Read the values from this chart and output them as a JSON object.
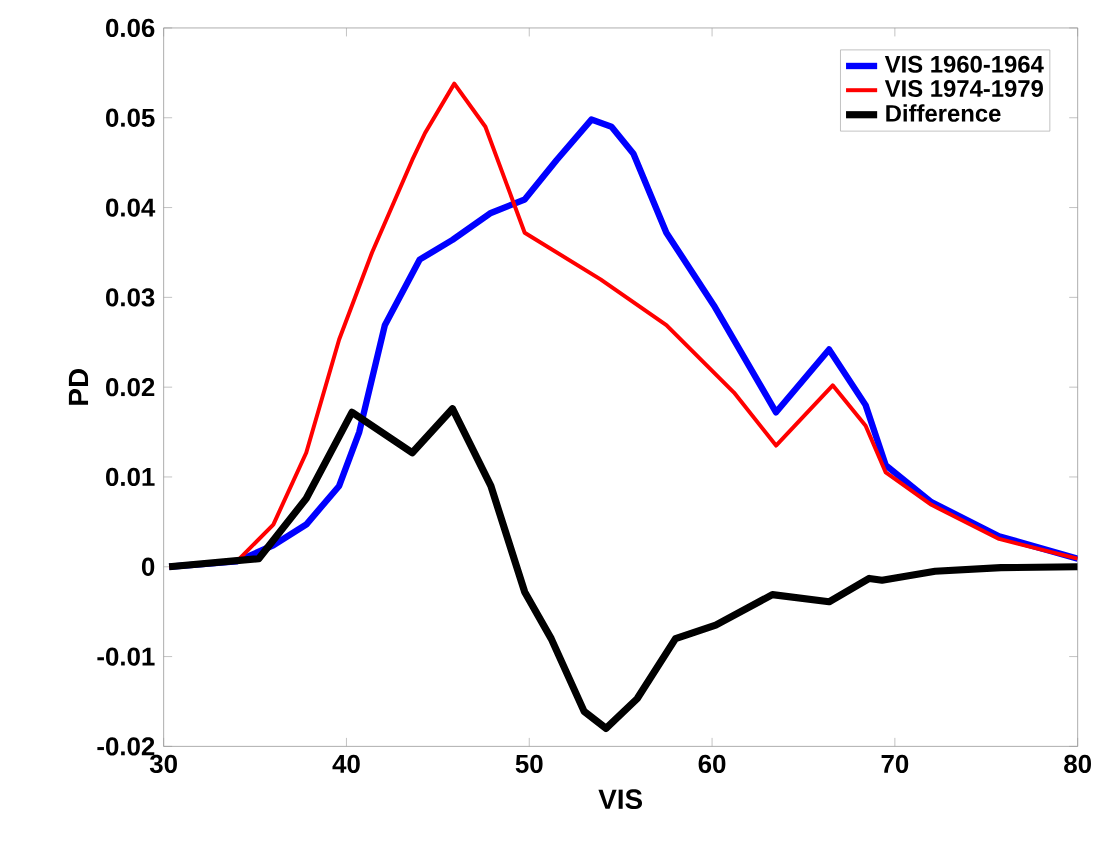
{
  "chart_data": {
    "type": "line",
    "xlabel": "VIS",
    "ylabel": "PD",
    "xlim": [
      30,
      80
    ],
    "ylim": [
      -0.02,
      0.06
    ],
    "xticks": [
      30,
      40,
      50,
      60,
      70,
      80
    ],
    "yticks": [
      -0.02,
      -0.01,
      0,
      0.01,
      0.02,
      0.03,
      0.04,
      0.05,
      0.06
    ],
    "legend": "top right",
    "grid": false,
    "marker": "none",
    "line_style": "solid",
    "series": [
      {
        "name": "VIS 1960-1964",
        "color": "#0000ff",
        "x": [
          30.3,
          34,
          36,
          37.8,
          39.6,
          40.7,
          42.1,
          44,
          45.8,
          47.9,
          49.75,
          51.5,
          53.4,
          54.5,
          55.7,
          57.5,
          60.1,
          63.5,
          66.4,
          68.4,
          69.5,
          72,
          75.7,
          80
        ],
        "values": [
          0,
          0.0006,
          0.0024,
          0.0047,
          0.009,
          0.015,
          0.0269,
          0.0342,
          0.0364,
          0.0394,
          0.0409,
          0.0453,
          0.0498,
          0.049,
          0.046,
          0.0372,
          0.0291,
          0.0172,
          0.0242,
          0.018,
          0.0113,
          0.0072,
          0.0034,
          0.0009
        ]
      },
      {
        "name": "VIS 1974-1979",
        "color": "#ff0000",
        "x": [
          30.3,
          34.1,
          36,
          37.8,
          39.6,
          41.4,
          43.6,
          44.3,
          45.9,
          47.6,
          49.75,
          53.9,
          57.5,
          61.2,
          63.5,
          66.6,
          68.4,
          69.5,
          72,
          75.7,
          80
        ],
        "values": [
          0,
          0.0008,
          0.0047,
          0.0127,
          0.0253,
          0.035,
          0.0453,
          0.0483,
          0.0538,
          0.049,
          0.0372,
          0.032,
          0.0269,
          0.0194,
          0.0135,
          0.0202,
          0.0157,
          0.0105,
          0.0069,
          0.0031,
          0.0009
        ]
      },
      {
        "name": "Difference",
        "color": "#000000",
        "x": [
          30.3,
          35.2,
          37.8,
          40.3,
          43.6,
          45.8,
          47.9,
          49.75,
          51.2,
          53,
          54.2,
          55.9,
          58,
          60.2,
          63.3,
          66.4,
          68.6,
          69.3,
          72.2,
          75.8,
          80
        ],
        "values": [
          0,
          0.0009,
          0.0076,
          0.0172,
          0.0127,
          0.0176,
          0.009,
          -0.0028,
          -0.008,
          -0.0161,
          -0.018,
          -0.0147,
          -0.008,
          -0.0065,
          -0.0031,
          -0.0039,
          -0.0013,
          -0.0015,
          -0.0005,
          -0.0001,
          0
        ]
      }
    ]
  }
}
